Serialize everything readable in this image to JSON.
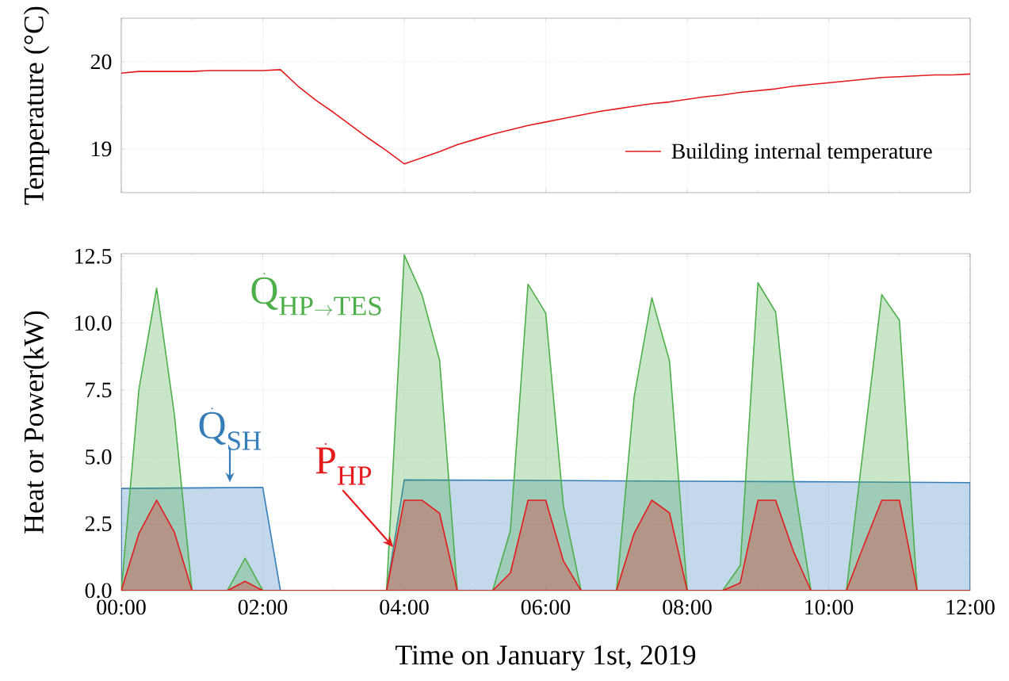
{
  "chart_data": [
    {
      "type": "line",
      "ylabel": "Temperature (°C)",
      "x": [
        0,
        0.25,
        1.0,
        1.25,
        2.0,
        2.25,
        2.5,
        2.75,
        3.0,
        3.25,
        3.5,
        3.75,
        4.0,
        4.25,
        4.5,
        4.75,
        5.0,
        5.25,
        5.5,
        5.75,
        6.0,
        6.25,
        6.5,
        6.75,
        7.0,
        7.25,
        7.5,
        7.75,
        8.0,
        8.25,
        8.5,
        8.75,
        9.0,
        9.25,
        9.5,
        9.75,
        10.0,
        10.25,
        10.5,
        10.75,
        11.0,
        11.25,
        11.5,
        11.75,
        12.0
      ],
      "series": [
        {
          "name": "Building internal temperature",
          "color": "#e41a1c",
          "values": [
            19.87,
            19.89,
            19.89,
            19.9,
            19.9,
            19.91,
            19.72,
            19.56,
            19.42,
            19.27,
            19.12,
            18.98,
            18.83,
            18.9,
            18.97,
            19.05,
            19.11,
            19.17,
            19.22,
            19.27,
            19.31,
            19.35,
            19.39,
            19.43,
            19.46,
            19.49,
            19.52,
            19.54,
            19.57,
            19.6,
            19.62,
            19.65,
            19.67,
            19.69,
            19.72,
            19.74,
            19.76,
            19.78,
            19.8,
            19.82,
            19.83,
            19.84,
            19.85,
            19.85,
            19.86
          ]
        }
      ],
      "xlim": [
        0,
        12
      ],
      "xticks": [
        {
          "value": 0,
          "label": null
        },
        {
          "value": 2,
          "label": null
        },
        {
          "value": 4,
          "label": null
        },
        {
          "value": 6,
          "label": null
        },
        {
          "value": 8,
          "label": null
        },
        {
          "value": 10,
          "label": null
        },
        {
          "value": 12,
          "label": null
        }
      ],
      "ylim": [
        18.5,
        20.5
      ],
      "yticks": [
        19,
        20
      ],
      "grid": true,
      "legend": "bottom right",
      "tick_labels": "y"
    },
    {
      "type": "area",
      "xlabel": "Time on January 1st, 2019",
      "ylabel": "Heat or Power(kW)",
      "x": [
        0,
        0.25,
        0.5,
        0.75,
        1,
        1.25,
        1.5,
        1.75,
        2,
        2.25,
        2.5,
        2.75,
        3,
        3.25,
        3.5,
        3.75,
        4,
        4.25,
        4.5,
        4.75,
        5,
        5.25,
        5.5,
        5.75,
        6,
        6.25,
        6.5,
        6.75,
        7,
        7.25,
        7.5,
        7.75,
        8,
        8.25,
        8.5,
        8.75,
        9,
        9.25,
        9.5,
        9.75,
        10,
        10.25,
        10.5,
        10.75,
        11,
        11.25,
        11.5,
        11.75,
        12
      ],
      "series": [
        {
          "name": "\\dot{\\mathrm{Q}}_{\\mathrm{SH}}",
          "color": "#377eb8",
          "x": [
            0,
            2,
            2.25,
            3.75,
            4,
            6,
            8,
            10,
            12
          ],
          "values": [
            3.82,
            3.86,
            0,
            0,
            4.14,
            4.12,
            4.09,
            4.07,
            4.04
          ]
        },
        {
          "name": "\\dot{\\mathrm{Q}}_{\\mathrm{HP}\\rightarrow\\mathrm{TES}}",
          "color": "#4daf4a",
          "values": [
            0,
            7.54,
            11.31,
            6.6,
            0,
            0,
            0,
            1.21,
            0,
            0,
            0,
            0,
            0,
            0,
            0,
            0,
            12.55,
            11.07,
            8.61,
            0,
            0,
            0,
            2.24,
            11.46,
            10.38,
            3.16,
            0,
            0,
            0,
            7.25,
            10.95,
            8.58,
            0,
            0,
            0,
            0.94,
            11.51,
            10.42,
            4.19,
            0,
            0,
            0,
            5.56,
            11.07,
            10.11,
            0,
            0,
            0,
            0
          ]
        },
        {
          "name": "\\dot{\\mathrm{P}}_{\\mathrm{HP}}",
          "color": "#e41a1c",
          "values": [
            0,
            2.14,
            3.38,
            2.19,
            0,
            0,
            0,
            0.35,
            0,
            0,
            0,
            0,
            0,
            0,
            0,
            0,
            3.38,
            3.38,
            2.89,
            0,
            0,
            0,
            0.66,
            3.38,
            3.38,
            1.11,
            0,
            0,
            0,
            2.14,
            3.38,
            2.91,
            0,
            0,
            0,
            0.29,
            3.38,
            3.38,
            1.48,
            0,
            0,
            0,
            1.72,
            3.38,
            3.38,
            0,
            0,
            0,
            0
          ]
        }
      ],
      "xlim": [
        0,
        12
      ],
      "xticks": [
        {
          "value": 0,
          "label": "00:00"
        },
        {
          "value": 2,
          "label": "02:00"
        },
        {
          "value": 4,
          "label": "04:00"
        },
        {
          "value": 6,
          "label": "06:00"
        },
        {
          "value": 8,
          "label": "08:00"
        },
        {
          "value": 10,
          "label": "10:00"
        },
        {
          "value": 12,
          "label": "12:00"
        }
      ],
      "ylim": [
        0,
        12.6
      ],
      "yticks": [
        {
          "value": 0,
          "label": "0.0"
        },
        {
          "value": 2.5,
          "label": "2.5"
        },
        {
          "value": 5,
          "label": "5.0"
        },
        {
          "value": 7.5,
          "label": "7.5"
        },
        {
          "value": 10,
          "label": "10.0"
        },
        {
          "value": 12.5,
          "label": "12.5"
        }
      ],
      "grid": true
    }
  ]
}
